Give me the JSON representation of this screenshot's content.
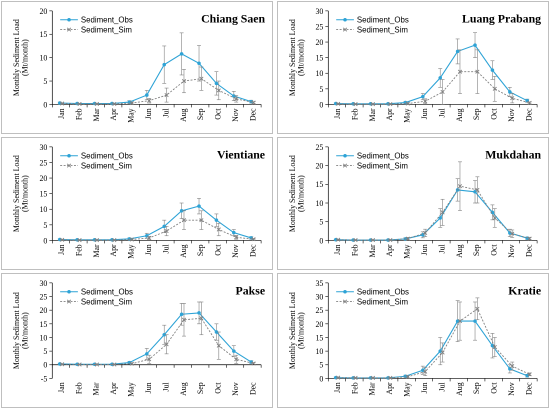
{
  "colors": {
    "obs": "#2ea3d6",
    "sim": "#808080",
    "axis": "#000000",
    "error_bar": "#808080"
  },
  "chart_data": [
    {
      "type": "line",
      "title": "Chiang Saen",
      "ylabel": "Monthly Sediment Load (Mt/month)",
      "ylim": [
        0,
        20
      ],
      "yticks": [
        0,
        5,
        10,
        15,
        20
      ],
      "categories": [
        "Jan",
        "Feb",
        "Mar",
        "Apr",
        "May",
        "Jun",
        "Jul",
        "Aug",
        "Sep",
        "Oct",
        "Nov",
        "Dec"
      ],
      "series": [
        {
          "name": "Sediment_Obs",
          "values": [
            0.3,
            0.2,
            0.2,
            0.2,
            0.5,
            2.0,
            8.5,
            10.8,
            8.8,
            4.5,
            1.8,
            0.6
          ],
          "err": [
            0.2,
            0.1,
            0.1,
            0.1,
            0.3,
            1.0,
            4.0,
            4.5,
            3.8,
            2.5,
            1.0,
            0.3
          ]
        },
        {
          "name": "Sediment_Sim",
          "values": [
            0.2,
            0.1,
            0.1,
            0.1,
            0.3,
            0.8,
            2.0,
            5.0,
            5.5,
            3.0,
            1.2,
            0.4
          ],
          "err": [
            0.1,
            0.1,
            0.1,
            0.1,
            0.2,
            0.5,
            1.5,
            2.5,
            2.5,
            2.0,
            0.7,
            0.2
          ]
        }
      ]
    },
    {
      "type": "line",
      "title": "Luang Prabang",
      "ylabel": "Monthly Sediment Load (Mt/month)",
      "ylim": [
        0,
        30
      ],
      "yticks": [
        0,
        5,
        10,
        15,
        20,
        25,
        30
      ],
      "categories": [
        "Jan",
        "Feb",
        "Mar",
        "Apr",
        "May",
        "Jun",
        "Jul",
        "Aug",
        "Sep",
        "Oct",
        "Nov",
        "Dec"
      ],
      "series": [
        {
          "name": "Sediment_Obs",
          "values": [
            0.3,
            0.2,
            0.2,
            0.2,
            0.6,
            2.5,
            8.5,
            17.0,
            19.0,
            11.0,
            4.0,
            1.2
          ],
          "err": [
            0.2,
            0.1,
            0.1,
            0.1,
            0.3,
            1.0,
            3.0,
            4.0,
            4.0,
            3.0,
            1.5,
            0.5
          ]
        },
        {
          "name": "Sediment_Sim",
          "values": [
            0.2,
            0.1,
            0.1,
            0.1,
            0.3,
            1.0,
            4.0,
            10.5,
            10.5,
            5.0,
            2.0,
            0.5
          ],
          "err": [
            0.1,
            0.1,
            0.1,
            0.1,
            0.2,
            0.8,
            4.0,
            7.0,
            7.0,
            4.0,
            1.5,
            0.3
          ]
        }
      ]
    },
    {
      "type": "line",
      "title": "Vientiane",
      "ylabel": "Monthly Sediment Load (Mt/month)",
      "ylim": [
        0,
        30
      ],
      "yticks": [
        0,
        5,
        10,
        15,
        20,
        25,
        30
      ],
      "categories": [
        "Jan",
        "Feb",
        "Mar",
        "Apr",
        "May",
        "Jun",
        "Jul",
        "Aug",
        "Sep",
        "Oct",
        "Nov",
        "Dec"
      ],
      "series": [
        {
          "name": "Sediment_Obs",
          "values": [
            0.3,
            0.2,
            0.2,
            0.2,
            0.5,
            1.5,
            4.5,
            9.5,
            11.0,
            6.5,
            2.5,
            0.8
          ],
          "err": [
            0.2,
            0.1,
            0.1,
            0.1,
            0.3,
            0.8,
            2.0,
            2.5,
            2.5,
            2.0,
            1.0,
            0.4
          ]
        },
        {
          "name": "Sediment_Sim",
          "values": [
            0.2,
            0.1,
            0.1,
            0.1,
            0.3,
            0.8,
            3.0,
            6.5,
            6.5,
            3.5,
            1.0,
            0.4
          ],
          "err": [
            0.1,
            0.1,
            0.1,
            0.1,
            0.2,
            0.5,
            1.5,
            3.0,
            3.0,
            2.0,
            0.6,
            0.2
          ]
        }
      ]
    },
    {
      "type": "line",
      "title": "Mukdahan",
      "ylabel": "Monthly Sediment Load (Mt/month)",
      "ylim": [
        0,
        25
      ],
      "yticks": [
        0,
        5,
        10,
        15,
        20,
        25
      ],
      "categories": [
        "Jan",
        "Feb",
        "Mar",
        "Apr",
        "May",
        "Jun",
        "Jul",
        "Aug",
        "Sep",
        "Oct",
        "Nov",
        "Dec"
      ],
      "series": [
        {
          "name": "Sediment_Obs",
          "values": [
            0.2,
            0.1,
            0.1,
            0.1,
            0.4,
            1.5,
            6.0,
            13.5,
            13.0,
            7.5,
            2.0,
            0.6
          ],
          "err": [
            0.1,
            0.1,
            0.1,
            0.1,
            0.3,
            0.8,
            2.5,
            3.0,
            3.0,
            2.0,
            1.0,
            0.3
          ]
        },
        {
          "name": "Sediment_Sim",
          "values": [
            0.2,
            0.1,
            0.1,
            0.1,
            0.5,
            2.0,
            7.5,
            14.5,
            13.5,
            6.0,
            1.8,
            0.5
          ],
          "err": [
            0.1,
            0.1,
            0.1,
            0.1,
            0.3,
            1.0,
            3.5,
            6.5,
            3.5,
            2.5,
            1.0,
            0.3
          ]
        }
      ]
    },
    {
      "type": "line",
      "title": "Pakse",
      "ylabel": "Monthly Sediment Load (Mt/month)",
      "ylim": [
        -5,
        30
      ],
      "yticks": [
        -5,
        0,
        5,
        10,
        15,
        20,
        25,
        30
      ],
      "categories": [
        "Jan",
        "Feb",
        "Mar",
        "Apr",
        "May",
        "Jun",
        "Jul",
        "Aug",
        "Sep",
        "Oct",
        "Nov",
        "Dec"
      ],
      "series": [
        {
          "name": "Sediment_Obs",
          "values": [
            0.3,
            0.2,
            0.2,
            0.2,
            0.8,
            4.0,
            11.0,
            18.5,
            19.0,
            12.0,
            5.0,
            1.0
          ],
          "err": [
            0.2,
            0.1,
            0.1,
            0.1,
            0.4,
            2.0,
            3.5,
            4.0,
            4.0,
            3.0,
            2.0,
            0.5
          ]
        },
        {
          "name": "Sediment_Sim",
          "values": [
            0.2,
            0.1,
            0.1,
            0.1,
            0.4,
            2.0,
            7.5,
            16.5,
            17.0,
            7.0,
            2.0,
            0.5
          ],
          "err": [
            0.1,
            0.1,
            0.1,
            0.1,
            0.3,
            1.5,
            3.5,
            6.0,
            6.0,
            5.0,
            1.5,
            0.3
          ]
        }
      ]
    },
    {
      "type": "line",
      "title": "Kratie",
      "ylabel": "Monthly Sediment Load (Mt/month)",
      "ylim": [
        0,
        35
      ],
      "yticks": [
        0,
        5,
        10,
        15,
        20,
        25,
        30,
        35
      ],
      "categories": [
        "Jan",
        "Feb",
        "Mar",
        "Apr",
        "May",
        "Jun",
        "Jul",
        "Aug",
        "Sep",
        "Oct",
        "Nov",
        "Dec"
      ],
      "series": [
        {
          "name": "Sediment_Obs",
          "values": [
            0.3,
            0.2,
            0.2,
            0.2,
            0.8,
            3.0,
            10.0,
            21.0,
            21.0,
            12.0,
            3.5,
            1.0
          ],
          "err": [
            0.2,
            0.1,
            0.1,
            0.1,
            0.4,
            1.5,
            5.0,
            7.5,
            7.0,
            4.5,
            1.5,
            0.5
          ]
        },
        {
          "name": "Sediment_Sim",
          "values": [
            0.3,
            0.2,
            0.2,
            0.2,
            0.6,
            2.5,
            9.5,
            21.0,
            25.5,
            11.5,
            4.5,
            1.5
          ],
          "err": [
            0.2,
            0.1,
            0.1,
            0.1,
            0.4,
            1.5,
            3.5,
            7.0,
            4.0,
            3.5,
            1.5,
            0.5
          ]
        }
      ]
    }
  ]
}
